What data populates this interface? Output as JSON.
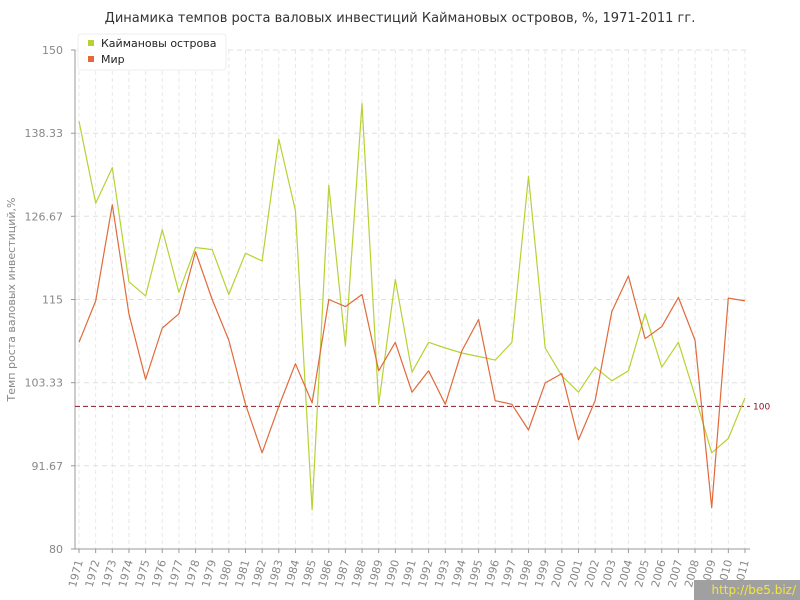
{
  "chart_data": {
    "type": "line",
    "title": "Динамика темпов роста валовых инвестиций Каймановых островов, %, 1971-2011 гг.",
    "ylabel": "Темп роста валовых инвестиций,%",
    "xlabel": "",
    "ylim": [
      80,
      150
    ],
    "yticks": [
      "80",
      "91.67",
      "103.33",
      "115",
      "126.67",
      "138.33",
      "150"
    ],
    "ytick_values": [
      80,
      91.67,
      103.33,
      115,
      126.67,
      138.33,
      150
    ],
    "categories": [
      "1971",
      "1972",
      "1973",
      "1974",
      "1975",
      "1976",
      "1977",
      "1978",
      "1979",
      "1980",
      "1981",
      "1982",
      "1983",
      "1984",
      "1985",
      "1986",
      "1987",
      "1988",
      "1989",
      "1990",
      "1991",
      "1992",
      "1993",
      "1994",
      "1995",
      "1996",
      "1997",
      "1998",
      "1999",
      "2000",
      "2001",
      "2002",
      "2003",
      "2004",
      "2005",
      "2006",
      "2007",
      "2008",
      "2009",
      "2010",
      "2011"
    ],
    "grid": true,
    "legend_position": "top-left",
    "reference_line": {
      "value": 100,
      "label": "100",
      "color": "#8a1a2a"
    },
    "series": [
      {
        "name": "Каймановы острова",
        "color": "#b5d334",
        "values": [
          140,
          128.5,
          133.5,
          117.5,
          115.5,
          124.8,
          116,
          122.3,
          122,
          115.7,
          121.5,
          120.4,
          137.5,
          127.5,
          85.5,
          131,
          108.5,
          142.5,
          100.3,
          117.8,
          104.8,
          109,
          108.2,
          107.5,
          107,
          106.5,
          109,
          132.3,
          108.2,
          104.3,
          102,
          105.5,
          103.6,
          105,
          113,
          105.5,
          109,
          101.5,
          93.5,
          95.5,
          101.2
        ]
      },
      {
        "name": "Мир",
        "color": "#e06a3a",
        "values": [
          109,
          114.8,
          128.3,
          113,
          103.8,
          111,
          113,
          121.7,
          115,
          109.3,
          100.3,
          93.5,
          100,
          106,
          100.5,
          115,
          114,
          115.7,
          105,
          109,
          102,
          105,
          100.3,
          107.8,
          112.2,
          100.8,
          100.3,
          96.7,
          103.3,
          104.6,
          95.3,
          100.8,
          113.3,
          118.3,
          109.5,
          111.2,
          115.3,
          109.3,
          85.8,
          115.2,
          114.8
        ]
      }
    ]
  },
  "watermark": "http://be5.biz/"
}
